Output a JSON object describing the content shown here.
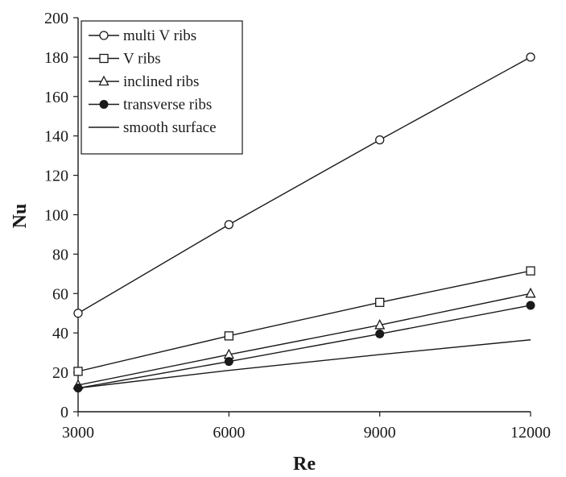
{
  "chart_data": {
    "type": "line",
    "xlabel": "Re",
    "ylabel": "Nu",
    "x": [
      3000,
      6000,
      9000,
      12000
    ],
    "xlim": [
      3000,
      12000
    ],
    "ylim": [
      0,
      200
    ],
    "xticks": [
      3000,
      6000,
      9000,
      12000
    ],
    "yticks": [
      0,
      20,
      40,
      60,
      80,
      100,
      120,
      140,
      160,
      180,
      200
    ],
    "grid": false,
    "legend_position": "top-left",
    "series": [
      {
        "name": "multi V ribs",
        "marker": "open-circle",
        "values": [
          50,
          95,
          138,
          180
        ]
      },
      {
        "name": "V ribs",
        "marker": "open-square",
        "values": [
          20.5,
          38.5,
          55.5,
          71.5
        ]
      },
      {
        "name": "inclined ribs",
        "marker": "open-triangle",
        "values": [
          13.5,
          29,
          44,
          60
        ]
      },
      {
        "name": "transverse ribs",
        "marker": "filled-circle",
        "values": [
          12,
          25.5,
          39.5,
          54
        ]
      },
      {
        "name": "smooth surface",
        "marker": "none",
        "values": [
          12,
          21,
          29,
          36.5
        ]
      }
    ]
  },
  "colors": {
    "line": "#1a1a1a",
    "background": "#ffffff"
  }
}
